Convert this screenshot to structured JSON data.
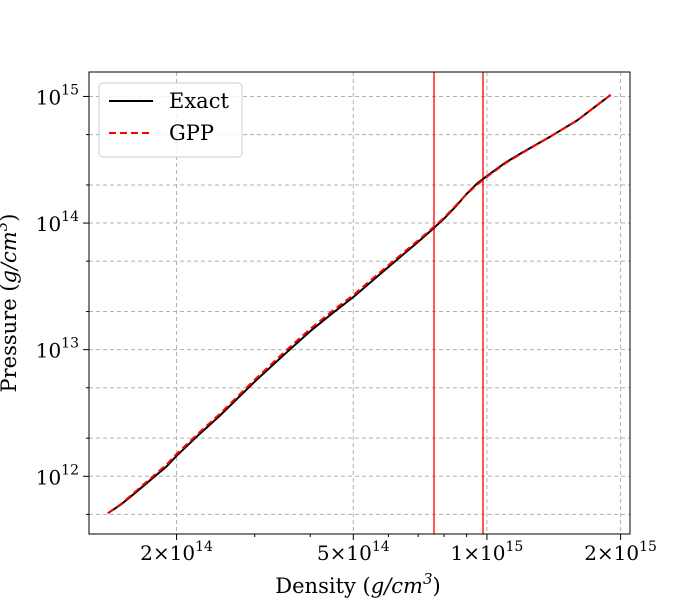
{
  "chart_data": {
    "type": "line",
    "title": "",
    "xlabel": {
      "text": "Density (",
      "var": "g/cm",
      "exp": "3",
      "close": ")"
    },
    "ylabel": {
      "text": "Pressure (",
      "var": "g/cm",
      "exp": "3",
      "close": ")"
    },
    "xscale": "log",
    "yscale": "log",
    "xlim": [
      127000000000000,
      2100000000000000
    ],
    "ylim": [
      350000000000,
      1560000000000000
    ],
    "x_ticks": [
      {
        "value": 200000000000000,
        "coef": "2",
        "exp": "14"
      },
      {
        "value": 500000000000000,
        "coef": "5",
        "exp": "14"
      },
      {
        "value": 1000000000000000,
        "coef": "1",
        "exp": "15"
      },
      {
        "value": 2000000000000000,
        "coef": "2",
        "exp": "15"
      }
    ],
    "x_minor_ticks": [
      300000000000000,
      400000000000000,
      600000000000000,
      700000000000000,
      800000000000000,
      900000000000000
    ],
    "y_ticks": [
      {
        "value": 1000000000000,
        "base": "10",
        "exp": "12"
      },
      {
        "value": 10000000000000,
        "base": "10",
        "exp": "13"
      },
      {
        "value": 100000000000000,
        "base": "10",
        "exp": "14"
      },
      {
        "value": 1000000000000000,
        "base": "10",
        "exp": "15"
      }
    ],
    "y_minor_ticks": [
      500000000000,
      2000000000000,
      5000000000000,
      20000000000000,
      50000000000000,
      200000000000000,
      500000000000000
    ],
    "grid": true,
    "legend": {
      "position": "top-left"
    },
    "series": [
      {
        "name": "Exact",
        "color": "#000000",
        "style": "solid",
        "points": [
          [
            140000000000000,
            510000000000
          ],
          [
            150000000000000,
            600000000000
          ],
          [
            160000000000000,
            720000000000
          ],
          [
            175000000000000,
            940000000000
          ],
          [
            190000000000000,
            1200000000000
          ],
          [
            200000000000000,
            1450000000000
          ],
          [
            225000000000000,
            2150000000000
          ],
          [
            250000000000000,
            3000000000000
          ],
          [
            300000000000000,
            5600000000000
          ],
          [
            350000000000000,
            9200000000000
          ],
          [
            400000000000000,
            14000000000000
          ],
          [
            450000000000000,
            19500000000000
          ],
          [
            500000000000000,
            26000000000000
          ],
          [
            600000000000000,
            45000000000000
          ],
          [
            700000000000000,
            71000000000000
          ],
          [
            750000000000000,
            88000000000000
          ],
          [
            800000000000000,
            108000000000000
          ],
          [
            850000000000000,
            135000000000000
          ],
          [
            900000000000000,
            170000000000000
          ],
          [
            950000000000000,
            205000000000000
          ],
          [
            1000000000000000,
            235000000000000
          ],
          [
            1100000000000000,
            300000000000000
          ],
          [
            1200000000000000,
            360000000000000
          ],
          [
            1400000000000000,
            490000000000000
          ],
          [
            1600000000000000,
            650000000000000
          ],
          [
            1900000000000000,
            1030000000000000
          ]
        ]
      },
      {
        "name": "GPP",
        "color": "#ff0000",
        "style": "dashed",
        "points": [
          [
            140000000000000,
            510000000000
          ],
          [
            150000000000000,
            605000000000
          ],
          [
            160000000000000,
            735000000000
          ],
          [
            175000000000000,
            965000000000
          ],
          [
            190000000000000,
            1240000000000
          ],
          [
            200000000000000,
            1500000000000
          ],
          [
            225000000000000,
            2220000000000
          ],
          [
            250000000000000,
            3100000000000
          ],
          [
            300000000000000,
            5800000000000
          ],
          [
            350000000000000,
            9600000000000
          ],
          [
            400000000000000,
            14600000000000
          ],
          [
            450000000000000,
            20400000000000
          ],
          [
            500000000000000,
            27000000000000
          ],
          [
            600000000000000,
            46500000000000
          ],
          [
            700000000000000,
            73000000000000
          ],
          [
            750000000000000,
            90000000000000
          ],
          [
            800000000000000,
            110000000000000
          ],
          [
            850000000000000,
            137000000000000
          ],
          [
            900000000000000,
            169000000000000
          ],
          [
            950000000000000,
            200000000000000
          ],
          [
            1000000000000000,
            232000000000000
          ],
          [
            1100000000000000,
            296000000000000
          ],
          [
            1200000000000000,
            357000000000000
          ],
          [
            1400000000000000,
            490000000000000
          ],
          [
            1600000000000000,
            650000000000000
          ],
          [
            1900000000000000,
            1030000000000000
          ]
        ]
      }
    ],
    "vertical_lines": [
      {
        "x": 760000000000000,
        "color": "#ff0000"
      },
      {
        "x": 980000000000000,
        "color": "#ff0000"
      }
    ]
  }
}
